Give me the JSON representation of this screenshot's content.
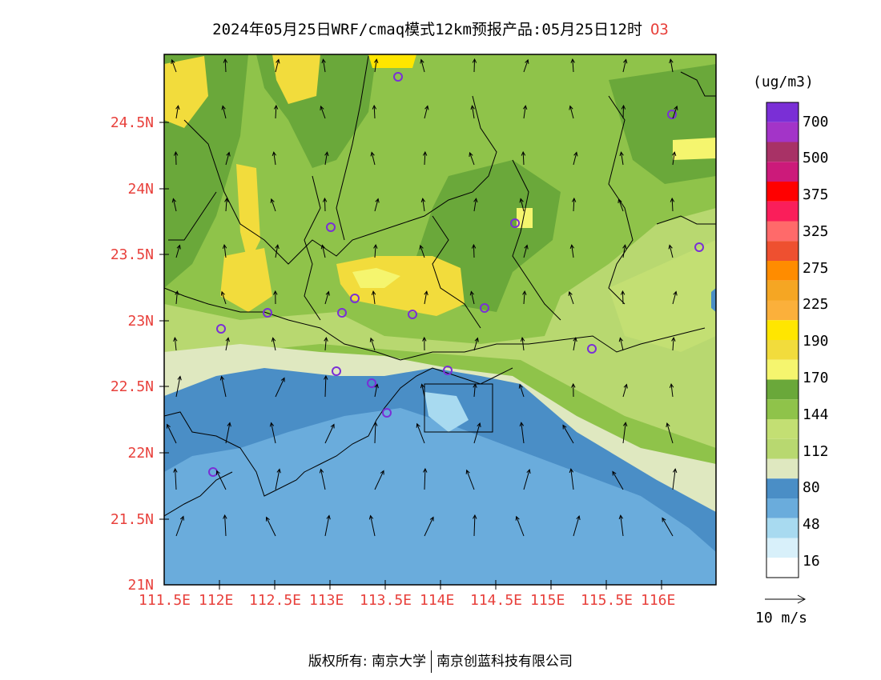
{
  "title": {
    "text": "2024年05月25日WRF/cmaq模式12km预报产品:05月25日12时",
    "variable": "O3"
  },
  "axes": {
    "lat_labels": [
      "24.5N",
      "24N",
      "23.5N",
      "23N",
      "22.5N",
      "22N",
      "21.5N",
      "21N"
    ],
    "lon_labels": [
      "111.5E",
      "112E",
      "112.5E",
      "113E",
      "113.5E",
      "114E",
      "114.5E",
      "115E",
      "115.5E",
      "116E"
    ]
  },
  "legend": {
    "unit": "(ug/m3)",
    "labels": [
      "700",
      "500",
      "375",
      "325",
      "275",
      "225",
      "190",
      "170",
      "144",
      "112",
      "80",
      "48",
      "16"
    ],
    "colors": [
      "#7a2fd6",
      "#a334c8",
      "#a83266",
      "#cc1a7a",
      "#ff0000",
      "#fa1e5a",
      "#ff6a6a",
      "#ee5030",
      "#ff8c00",
      "#f5a623",
      "#fbb03b",
      "#ffe600",
      "#f2dc3c",
      "#f5f56e",
      "#6aa83a",
      "#8fc34a",
      "#c3df73",
      "#b8d870",
      "#dfe8c0",
      "#4a8ec6",
      "#6aacdc",
      "#a8daf0",
      "#d8f0fa",
      "#ffffff"
    ]
  },
  "reference_vector": {
    "label": "10 m/s"
  },
  "footer": {
    "copyright": "版权所有: 南京大学",
    "company": "南京创蓝科技有限公司"
  }
}
